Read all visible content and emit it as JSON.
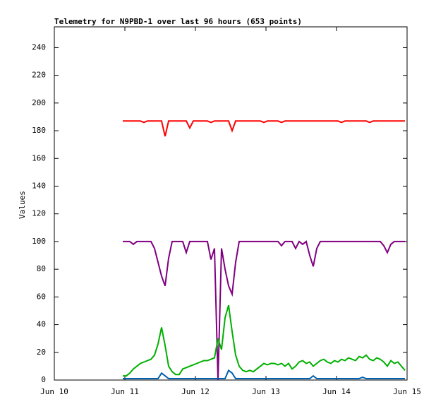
{
  "chart_data": {
    "type": "line",
    "title": "Telemetry for N9PBD-1 over last 96 hours (653 points)",
    "y_label": "Values",
    "x": [
      0.97,
      1.02,
      1.07,
      1.12,
      1.17,
      1.22,
      1.27,
      1.32,
      1.37,
      1.42,
      1.47,
      1.52,
      1.57,
      1.62,
      1.67,
      1.72,
      1.77,
      1.82,
      1.87,
      1.92,
      1.97,
      2.02,
      2.07,
      2.12,
      2.17,
      2.22,
      2.27,
      2.32,
      2.37,
      2.42,
      2.47,
      2.52,
      2.57,
      2.62,
      2.67,
      2.72,
      2.77,
      2.82,
      2.87,
      2.92,
      2.97,
      3.02,
      3.07,
      3.12,
      3.17,
      3.22,
      3.27,
      3.32,
      3.37,
      3.42,
      3.47,
      3.52,
      3.57,
      3.62,
      3.67,
      3.72,
      3.77,
      3.82,
      3.87,
      3.92,
      3.97,
      4.02,
      4.07,
      4.12,
      4.17,
      4.22,
      4.27,
      4.32,
      4.37,
      4.42,
      4.47,
      4.52,
      4.57,
      4.62,
      4.67,
      4.72,
      4.77,
      4.82,
      4.87,
      4.92,
      4.97
    ],
    "series": [
      {
        "color": "#ff0000",
        "values": [
          187,
          187,
          187,
          187,
          187,
          187,
          186,
          187,
          187,
          187,
          187,
          187,
          176,
          187,
          187,
          187,
          187,
          187,
          187,
          182,
          187,
          187,
          187,
          187,
          187,
          186,
          187,
          187,
          187,
          187,
          187,
          180,
          187,
          187,
          187,
          187,
          187,
          187,
          187,
          187,
          186,
          187,
          187,
          187,
          187,
          186,
          187,
          187,
          187,
          187,
          187,
          187,
          187,
          187,
          187,
          187,
          187,
          187,
          187,
          187,
          187,
          187,
          186,
          187,
          187,
          187,
          187,
          187,
          187,
          187,
          186,
          187,
          187,
          187,
          187,
          187,
          187,
          187,
          187,
          187,
          187
        ]
      },
      {
        "color": "#800080",
        "values": [
          100,
          100,
          100,
          98,
          100,
          100,
          100,
          100,
          100,
          95,
          85,
          75,
          68,
          88,
          100,
          100,
          100,
          100,
          92,
          100,
          100,
          100,
          100,
          100,
          100,
          87,
          95,
          0,
          95,
          80,
          68,
          62,
          85,
          100,
          100,
          100,
          100,
          100,
          100,
          100,
          100,
          100,
          100,
          100,
          100,
          97,
          100,
          100,
          100,
          95,
          100,
          98,
          100,
          90,
          82,
          95,
          100,
          100,
          100,
          100,
          100,
          100,
          100,
          100,
          100,
          100,
          100,
          100,
          100,
          100,
          100,
          100,
          100,
          100,
          97,
          92,
          98,
          100,
          100,
          100,
          100
        ]
      },
      {
        "color": "#00b000",
        "values": [
          3,
          3,
          5,
          8,
          10,
          12,
          13,
          14,
          15,
          18,
          26,
          38,
          25,
          10,
          6,
          4,
          4,
          8,
          9,
          10,
          11,
          12,
          13,
          14,
          14,
          15,
          16,
          30,
          22,
          45,
          54,
          35,
          18,
          10,
          7,
          6,
          7,
          6,
          8,
          10,
          12,
          11,
          12,
          12,
          11,
          12,
          10,
          12,
          8,
          10,
          13,
          14,
          12,
          13,
          10,
          12,
          14,
          15,
          13,
          12,
          14,
          13,
          15,
          14,
          16,
          15,
          14,
          17,
          16,
          18,
          15,
          14,
          16,
          15,
          13,
          10,
          14,
          12,
          13,
          10,
          7
        ]
      },
      {
        "color": "#0060b0",
        "values": [
          1,
          1,
          1,
          1,
          1,
          1,
          1,
          1,
          1,
          1,
          1,
          5,
          3,
          1,
          1,
          1,
          1,
          1,
          1,
          1,
          1,
          1,
          1,
          1,
          1,
          1,
          1,
          1,
          1,
          1,
          7,
          5,
          1,
          1,
          1,
          1,
          1,
          1,
          1,
          1,
          1,
          1,
          1,
          1,
          1,
          1,
          1,
          1,
          1,
          1,
          1,
          1,
          1,
          1,
          3,
          1,
          1,
          1,
          1,
          1,
          1,
          1,
          1,
          1,
          1,
          1,
          1,
          1,
          2,
          1,
          1,
          1,
          1,
          1,
          1,
          1,
          1,
          1,
          1,
          1,
          1
        ]
      }
    ],
    "xlim": [
      0,
      5
    ],
    "xticks": [
      {
        "value": 0,
        "label": "Jun 10"
      },
      {
        "value": 1,
        "label": "Jun 11"
      },
      {
        "value": 2,
        "label": "Jun 12"
      },
      {
        "value": 3,
        "label": "Jun 13"
      },
      {
        "value": 4,
        "label": "Jun 14"
      },
      {
        "value": 5,
        "label": "Jun 15"
      }
    ],
    "ylim": [
      0,
      255
    ],
    "yticks": [
      0,
      20,
      40,
      60,
      80,
      100,
      120,
      140,
      160,
      180,
      200,
      220,
      240
    ]
  }
}
